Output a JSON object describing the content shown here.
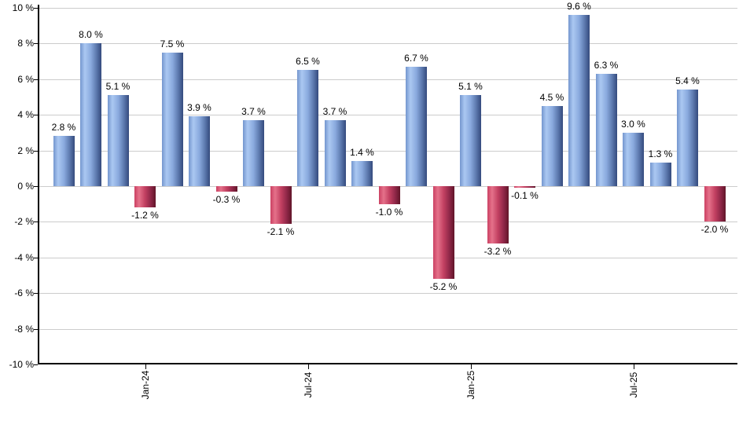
{
  "chart_data": {
    "type": "bar",
    "title": "",
    "xlabel": "",
    "ylabel": "",
    "unit": "%",
    "ylim": [
      -10,
      10
    ],
    "y_tick_step": 2,
    "grid": true,
    "legend": "none",
    "values": [
      2.8,
      8.0,
      5.1,
      -1.2,
      7.5,
      3.9,
      -0.3,
      3.7,
      -2.1,
      6.5,
      3.7,
      1.4,
      -1.0,
      6.7,
      -5.2,
      5.1,
      -3.2,
      -0.1,
      4.5,
      9.6,
      6.3,
      3.0,
      1.3,
      5.4,
      -2.0
    ],
    "bar_value_labels": [
      "2.8 %",
      "8.0 %",
      "5.1 %",
      "-1.2 %",
      "7.5 %",
      "3.9 %",
      "-0.3 %",
      "3.7 %",
      "-2.1 %",
      "6.5 %",
      "3.7 %",
      "1.4 %",
      "-1.0 %",
      "6.7 %",
      "-5.2 %",
      "5.1 %",
      "-3.2 %",
      "-0.1 %",
      "4.5 %",
      "9.6 %",
      "6.3 %",
      "3.0 %",
      "1.3 %",
      "5.4 %",
      "-2.0 %"
    ],
    "y_tick_labels": [
      "10 %",
      "8 %",
      "6 %",
      "4 %",
      "2 %",
      "0 %",
      "-2 %",
      "-4 %",
      "-6 %",
      "-8 %",
      "-10 %"
    ],
    "x_tick_labels": [
      {
        "label": "Jan-24",
        "bar_index": 3
      },
      {
        "label": "Jul-24",
        "bar_index": 9
      },
      {
        "label": "Jan-25",
        "bar_index": 15
      },
      {
        "label": "Jul-25",
        "bar_index": 21
      }
    ],
    "colors": {
      "positive_bar_edge": "#7496ce",
      "positive_bar_light": "#abc8f2",
      "positive_bar_mid": "#8aaade",
      "positive_bar_dark2": "#5f7cb1",
      "positive_bar_dark": "#344a7d",
      "negative_bar_edge": "#cb4163",
      "negative_bar_light": "#e5718a",
      "negative_bar_mid": "#c24061",
      "negative_bar_dark2": "#93294a",
      "negative_bar_dark": "#611529",
      "gridline": "#cccccc",
      "axis": "#000000",
      "text": "#000000",
      "background": "#ffffff"
    }
  }
}
